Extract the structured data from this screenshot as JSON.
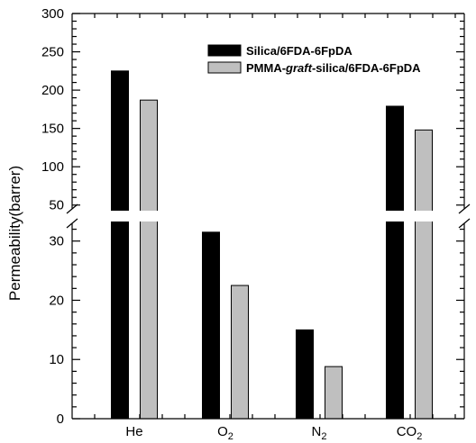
{
  "chart_data": {
    "type": "bar",
    "xlabel": "",
    "ylabel": "Permeability(barrer)",
    "categories": [
      {
        "main": "He",
        "sub": ""
      },
      {
        "main": "O",
        "sub": "2"
      },
      {
        "main": "N",
        "sub": "2"
      },
      {
        "main": "CO",
        "sub": "2"
      }
    ],
    "series": [
      {
        "name_parts": [
          {
            "text": "Silica/6FDA-6FpDA",
            "italic": false
          }
        ],
        "color": "#000000",
        "values": [
          225,
          31.5,
          15,
          179
        ]
      },
      {
        "name_parts": [
          {
            "text": "PMMA-",
            "italic": false
          },
          {
            "text": "graft",
            "italic": true
          },
          {
            "text": "-silica/6FDA-6FpDA",
            "italic": false
          }
        ],
        "color": "#bfbfbf",
        "values": [
          187,
          22.5,
          8.8,
          148
        ]
      }
    ],
    "y_axis": {
      "broken": true,
      "lower": {
        "range": [
          0,
          33
        ],
        "ticks": [
          0,
          10,
          20,
          30
        ]
      },
      "upper": {
        "range": [
          45,
          300
        ],
        "ticks": [
          50,
          100,
          150,
          200,
          250,
          300
        ]
      }
    },
    "grid": false,
    "legend_position": "top-right"
  }
}
